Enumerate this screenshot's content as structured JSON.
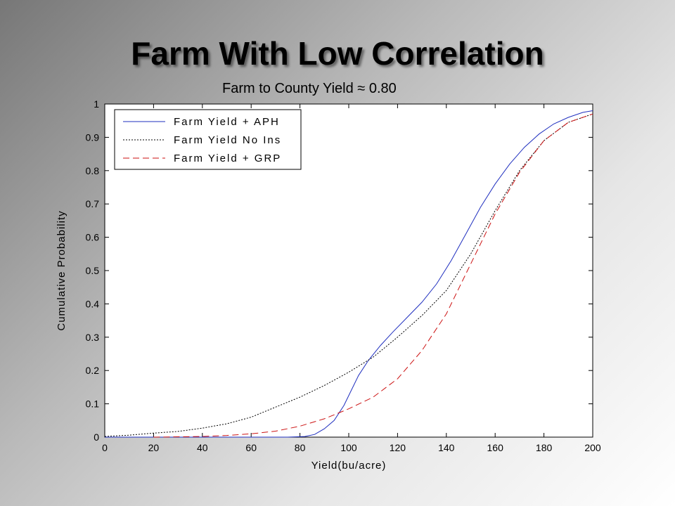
{
  "slide": {
    "title": "Farm With Low Correlation",
    "subtitle": "Farm to County Yield ≈ 0.80"
  },
  "chart_data": {
    "type": "line",
    "title": "",
    "xlabel": "Yield(bu/acre)",
    "ylabel": "Cumulative Probability",
    "xlim": [
      0,
      200
    ],
    "ylim": [
      0,
      1
    ],
    "xticks": [
      0,
      20,
      40,
      60,
      80,
      100,
      120,
      140,
      160,
      180,
      200
    ],
    "yticks": [
      0,
      0.1,
      0.2,
      0.3,
      0.4,
      0.5,
      0.6,
      0.7,
      0.8,
      0.9,
      1
    ],
    "xtick_labels": [
      "0",
      "20",
      "40",
      "60",
      "80",
      "100",
      "120",
      "140",
      "160",
      "180",
      "200"
    ],
    "ytick_labels": [
      "0",
      "0.1",
      "0.2",
      "0.3",
      "0.4",
      "0.5",
      "0.6",
      "0.7",
      "0.8",
      "0.9",
      "1"
    ],
    "grid": false,
    "legend_position": "top-left",
    "series": [
      {
        "name": "Farm Yield + APH",
        "color": "#1f2fbf",
        "dash": "solid",
        "x": [
          0,
          60,
          75,
          82,
          86,
          90,
          94,
          98,
          101,
          104,
          108,
          113,
          118,
          124,
          130,
          136,
          142,
          148,
          154,
          160,
          166,
          172,
          178,
          184,
          190,
          196,
          200
        ],
        "y": [
          0,
          0,
          0,
          0.002,
          0.008,
          0.025,
          0.05,
          0.095,
          0.14,
          0.185,
          0.23,
          0.275,
          0.315,
          0.36,
          0.405,
          0.46,
          0.53,
          0.61,
          0.69,
          0.76,
          0.82,
          0.87,
          0.91,
          0.94,
          0.96,
          0.975,
          0.98
        ]
      },
      {
        "name": "Farm Yield No Ins",
        "color": "#000000",
        "dash": "dotted",
        "x": [
          0,
          10,
          20,
          30,
          40,
          50,
          60,
          70,
          80,
          90,
          100,
          110,
          120,
          130,
          140,
          150,
          160,
          170,
          180,
          190,
          200
        ],
        "y": [
          0.002,
          0.006,
          0.012,
          0.017,
          0.027,
          0.04,
          0.06,
          0.09,
          0.12,
          0.155,
          0.195,
          0.24,
          0.3,
          0.365,
          0.44,
          0.55,
          0.68,
          0.8,
          0.89,
          0.945,
          0.97
        ]
      },
      {
        "name": "Farm Yield + GRP",
        "color": "#cc1111",
        "dash": "dashed",
        "x": [
          20,
          40,
          50,
          60,
          70,
          80,
          90,
          100,
          110,
          120,
          130,
          140,
          150,
          160,
          170,
          180,
          190,
          200
        ],
        "y": [
          0,
          0.002,
          0.005,
          0.01,
          0.018,
          0.033,
          0.055,
          0.085,
          0.12,
          0.175,
          0.26,
          0.37,
          0.52,
          0.67,
          0.795,
          0.89,
          0.945,
          0.97
        ]
      }
    ]
  }
}
